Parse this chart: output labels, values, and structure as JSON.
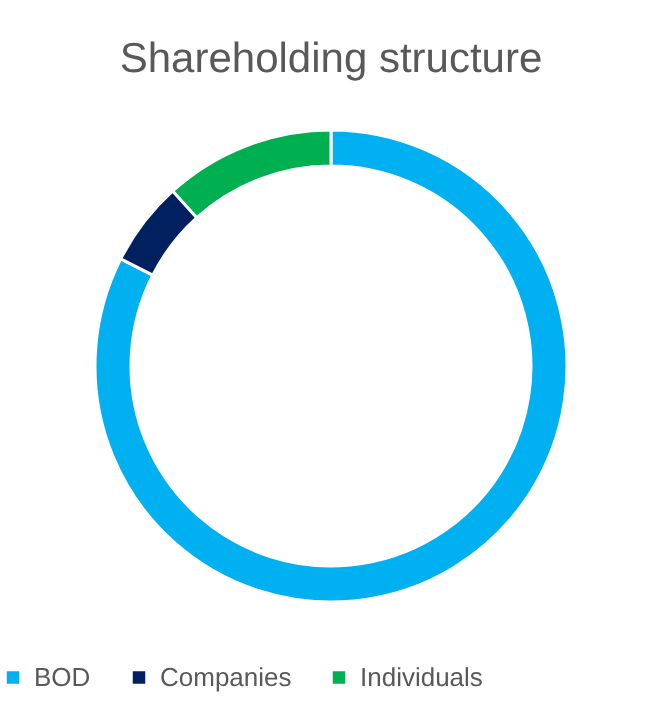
{
  "chart_data": {
    "type": "donut",
    "title": "Shareholding structure",
    "categories": [
      "BOD",
      "Companies",
      "Individuals"
    ],
    "values": [
      82.5,
      5.8,
      11.7
    ],
    "colors": [
      "#00b0f0",
      "#002060",
      "#00b050"
    ],
    "legend": "bottom"
  }
}
